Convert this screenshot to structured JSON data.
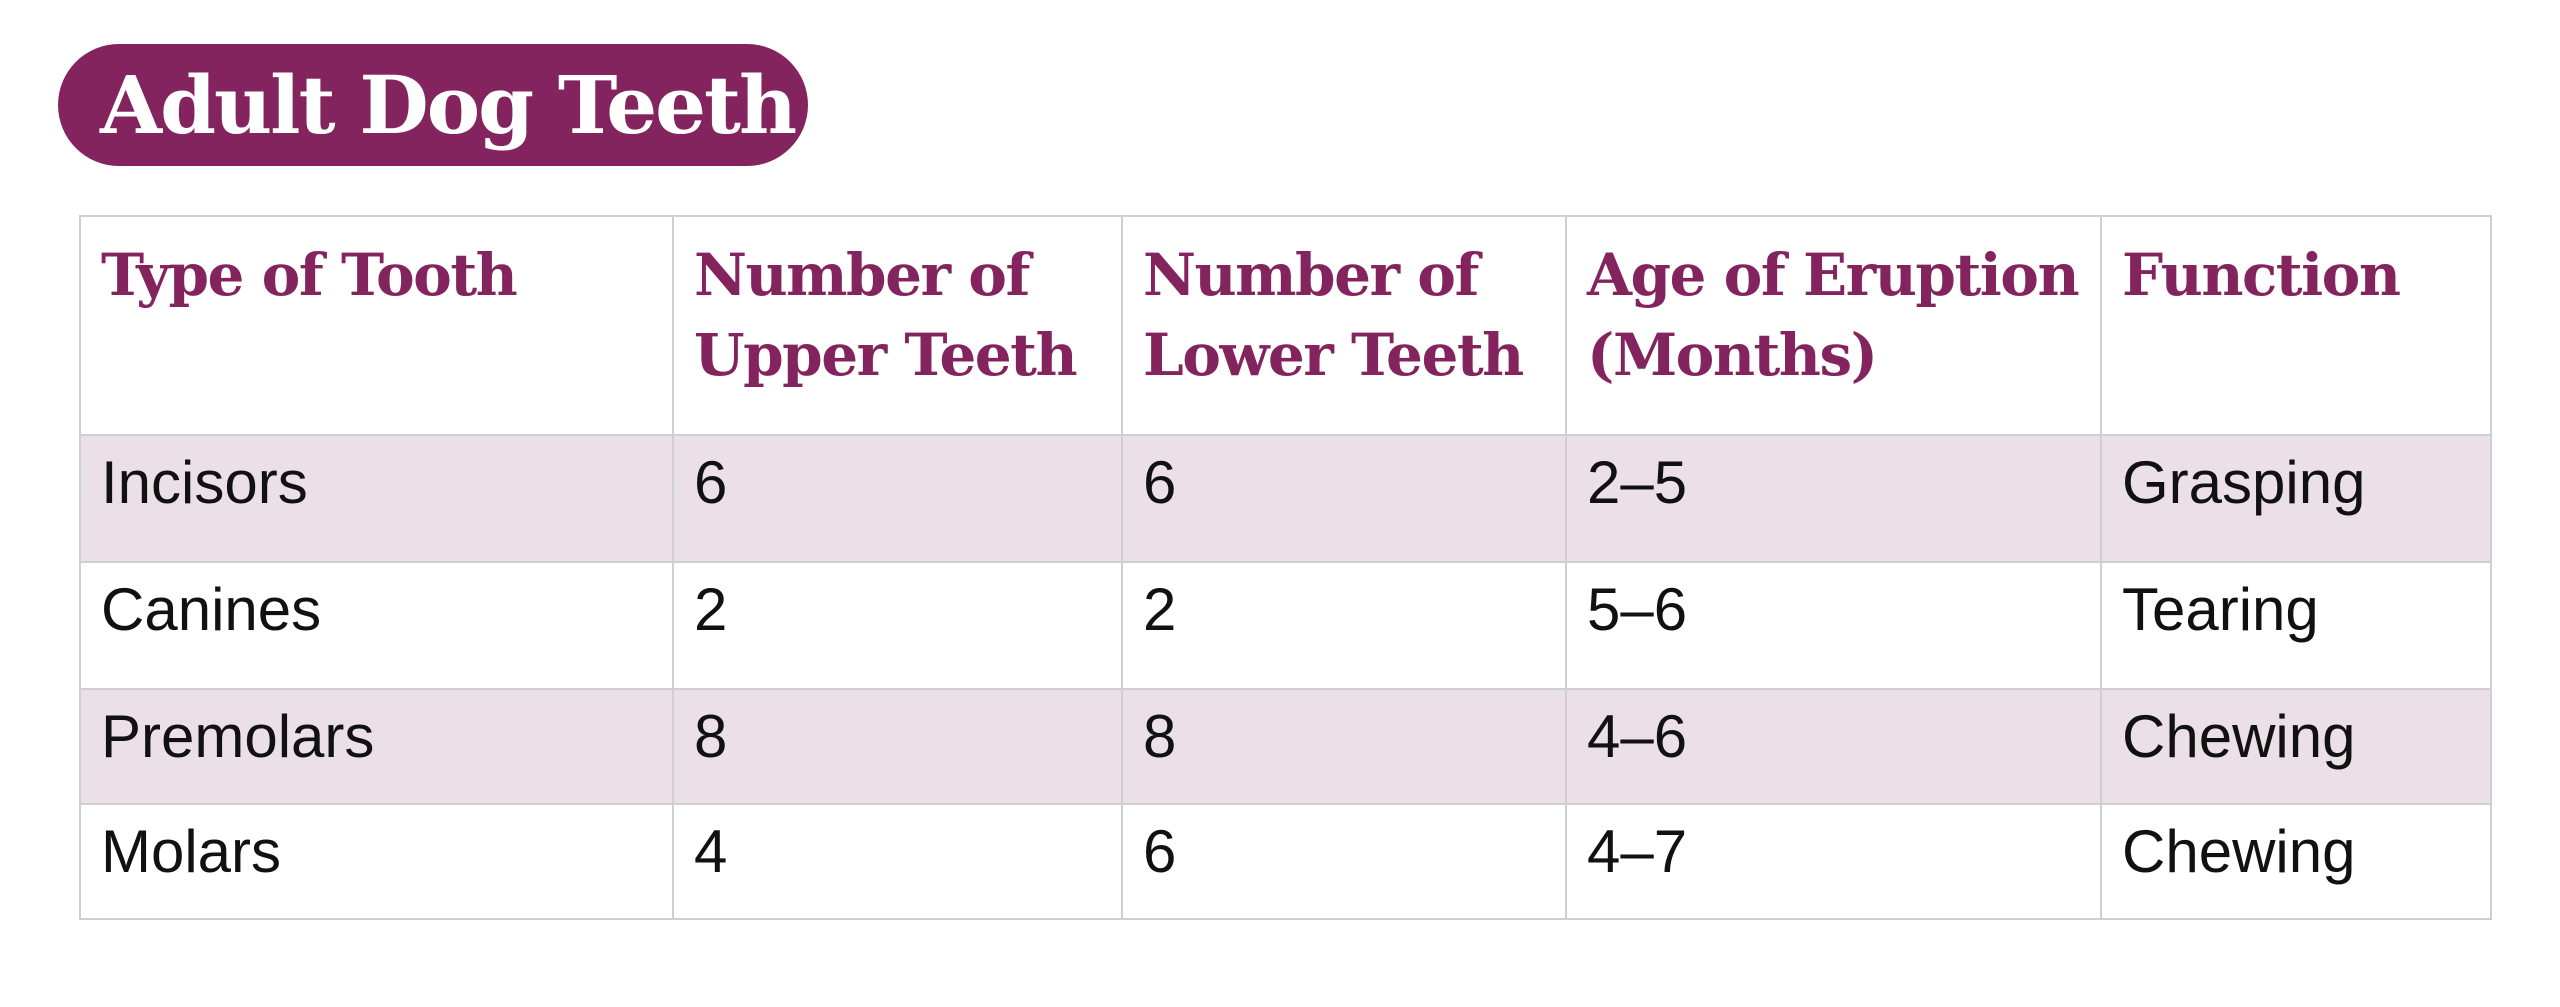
{
  "title": "Adult Dog Teeth",
  "table": {
    "headers": [
      [
        "Type of Tooth"
      ],
      [
        "Number of",
        "Upper Teeth"
      ],
      [
        "Number of",
        "Lower Teeth"
      ],
      [
        "Age of Eruption",
        "(Months)"
      ],
      [
        "Function"
      ]
    ],
    "rows": [
      [
        "Incisors",
        "6",
        "6",
        "2–5",
        "Grasping"
      ],
      [
        "Canines",
        "2",
        "2",
        "5–6",
        "Tearing"
      ],
      [
        "Premolars",
        "8",
        "8",
        "4–6",
        "Chewing"
      ],
      [
        "Molars",
        "4",
        "6",
        "4–7",
        "Chewing"
      ]
    ]
  },
  "colors": {
    "accent": "#84245f",
    "row_tint": "#ece0e8",
    "border": "#cfcfcf"
  }
}
